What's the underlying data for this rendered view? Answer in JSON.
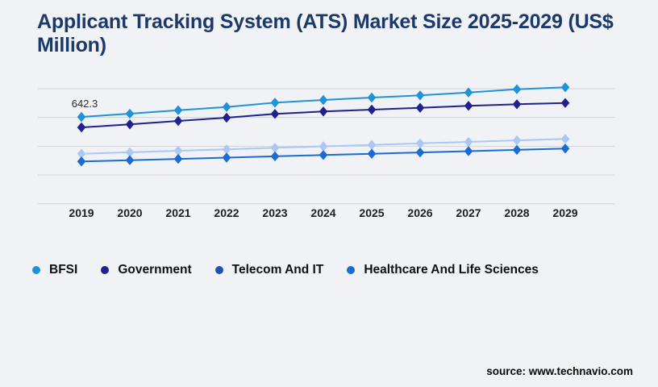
{
  "style": {
    "background": "#f1f2f5",
    "title_color": "#1b3a6a",
    "grid_color": "#d3d4d7",
    "axis_label_color": "#1d1d22"
  },
  "page": {
    "source": "source: www.technavio.com"
  },
  "chart_data": {
    "type": "line",
    "title": "Applicant Tracking System (ATS) Market Size 2025-2029 (US$ Million)",
    "unit": "US$ Million",
    "x": [
      "2019",
      "2020",
      "2021",
      "2022",
      "2023",
      "2024",
      "2025",
      "2026",
      "2027",
      "2028",
      "2029"
    ],
    "series": [
      {
        "name": "BFSI",
        "color": "#1f93d8",
        "legend_color": "#1f93d8",
        "values": [
          642.3,
          666.1,
          691.8,
          715.6,
          747.8,
          767.5,
          785.4,
          801.5,
          823.0,
          846.9,
          861.2
        ]
      },
      {
        "name": "Government",
        "color": "#21208f",
        "legend_color": "#21208f",
        "values": [
          564.8,
          586.9,
          612.5,
          636.4,
          664.4,
          682.3,
          696.0,
          709.7,
          724.0,
          736.0,
          745.5
        ]
      },
      {
        "name": "Telecom And IT",
        "color": "#abc7f3",
        "legend_color": "#2150b4",
        "values": [
          369.8,
          380.5,
          391.8,
          402.6,
          413.9,
          424.6,
          435.4,
          446.7,
          457.4,
          468.7,
          479.5
        ]
      },
      {
        "name": "Healthcare And Life Sciences",
        "color": "#1a6bd2",
        "legend_color": "#1a6bd2",
        "values": [
          312.5,
          322.1,
          331.6,
          341.1,
          350.7,
          360.2,
          369.8,
          379.3,
          388.9,
          398.4,
          408.0
        ]
      }
    ],
    "data_labels": [
      {
        "series": "BFSI",
        "x": "2019",
        "text": "642.3"
      }
    ],
    "grid": true,
    "y_axis_visible": false,
    "ylim": [
      0,
      900
    ],
    "legend_position": "bottom"
  }
}
